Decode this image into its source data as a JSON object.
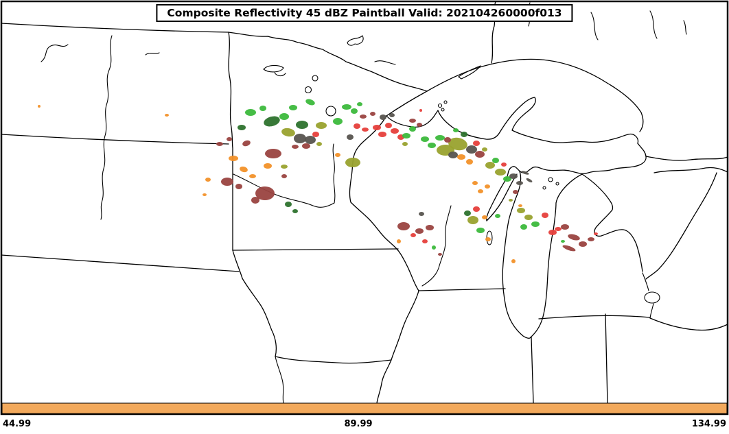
{
  "title": "Composite Reflectivity 45 dBZ Paintball Valid: 202104260000f013",
  "x_axis": {
    "ticks": [
      "44.99",
      "89.99",
      "134.99"
    ]
  },
  "colorbar": {
    "color": "#f2a95c"
  },
  "chart_data": {
    "type": "paintball-scatter-map",
    "title": "Composite Reflectivity 45 dBZ Paintball Valid: 202104260000f013",
    "threshold": "45 dBZ",
    "valid_label": "202104260000f013",
    "x_tick_labels": [
      "44.99",
      "89.99",
      "134.99"
    ],
    "region": "Upper Midwest / Great Lakes",
    "coordinate_space": "canvas pixels 1062x633; blob = [cx, cy, rx, ry, member_index, rotation_deg]",
    "members": [
      {
        "name": "member-1-green",
        "color": "#3cb93c"
      },
      {
        "name": "member-2-dark-green",
        "color": "#2d722d"
      },
      {
        "name": "member-3-olive",
        "color": "#99a22e"
      },
      {
        "name": "member-4-orange",
        "color": "#f29129"
      },
      {
        "name": "member-5-red",
        "color": "#e63f3b"
      },
      {
        "name": "member-6-dark-red",
        "color": "#9a4340"
      },
      {
        "name": "member-7-gray",
        "color": "#57544f"
      }
    ],
    "blobs": [
      [
        57,
        155,
        2,
        2,
        3
      ],
      [
        243,
        168,
        3,
        2,
        3
      ],
      [
        352,
        186,
        6,
        4,
        1
      ],
      [
        365,
        164,
        8,
        5,
        0
      ],
      [
        383,
        158,
        5,
        4,
        0
      ],
      [
        396,
        177,
        12,
        7,
        1,
        -15
      ],
      [
        414,
        170,
        7,
        5,
        0
      ],
      [
        427,
        157,
        6,
        4,
        0
      ],
      [
        452,
        149,
        7,
        4,
        0,
        20
      ],
      [
        468,
        183,
        8,
        5,
        2
      ],
      [
        440,
        182,
        9,
        6,
        1
      ],
      [
        420,
        193,
        10,
        6,
        2,
        10
      ],
      [
        437,
        202,
        9,
        7,
        6
      ],
      [
        452,
        204,
        8,
        6,
        6
      ],
      [
        460,
        196,
        5,
        4,
        4
      ],
      [
        446,
        213,
        6,
        4,
        5
      ],
      [
        430,
        214,
        5,
        3,
        5
      ],
      [
        465,
        210,
        4,
        3,
        2
      ],
      [
        320,
        210,
        5,
        3,
        5
      ],
      [
        334,
        203,
        4,
        3,
        5
      ],
      [
        359,
        209,
        6,
        4,
        5,
        -20
      ],
      [
        398,
        224,
        12,
        7,
        5
      ],
      [
        303,
        262,
        4,
        3,
        3
      ],
      [
        340,
        231,
        7,
        4,
        3
      ],
      [
        355,
        247,
        6,
        4,
        3,
        15
      ],
      [
        368,
        257,
        5,
        3,
        3
      ],
      [
        390,
        242,
        6,
        4,
        3
      ],
      [
        414,
        243,
        5,
        3,
        2
      ],
      [
        331,
        265,
        9,
        6,
        5
      ],
      [
        348,
        272,
        5,
        4,
        5
      ],
      [
        386,
        282,
        14,
        10,
        5
      ],
      [
        372,
        292,
        6,
        5,
        5
      ],
      [
        414,
        257,
        4,
        3,
        5
      ],
      [
        420,
        298,
        5,
        4,
        1
      ],
      [
        430,
        308,
        4,
        3,
        1
      ],
      [
        298,
        284,
        3,
        2,
        3
      ],
      [
        492,
        177,
        7,
        5,
        0
      ],
      [
        505,
        156,
        7,
        4,
        0
      ],
      [
        516,
        162,
        5,
        4,
        0
      ],
      [
        524,
        152,
        4,
        3,
        0
      ],
      [
        520,
        184,
        5,
        4,
        4
      ],
      [
        532,
        189,
        5,
        3,
        4
      ],
      [
        529,
        170,
        5,
        3,
        5
      ],
      [
        543,
        166,
        4,
        3,
        5
      ],
      [
        510,
        200,
        5,
        4,
        6
      ],
      [
        514,
        237,
        11,
        7,
        2
      ],
      [
        492,
        226,
        4,
        3,
        3
      ],
      [
        549,
        186,
        6,
        4,
        4
      ],
      [
        557,
        196,
        6,
        4,
        4
      ],
      [
        566,
        183,
        5,
        4,
        4
      ],
      [
        575,
        191,
        6,
        4,
        4
      ],
      [
        584,
        200,
        5,
        4,
        4
      ],
      [
        558,
        171,
        5,
        4,
        6
      ],
      [
        571,
        168,
        4,
        3,
        6
      ],
      [
        592,
        198,
        6,
        4,
        0
      ],
      [
        601,
        188,
        5,
        4,
        0
      ],
      [
        601,
        176,
        5,
        3,
        5
      ],
      [
        611,
        182,
        4,
        3,
        5
      ],
      [
        613,
        161,
        2,
        2,
        4
      ],
      [
        590,
        210,
        4,
        3,
        2
      ],
      [
        619,
        203,
        6,
        4,
        0
      ],
      [
        629,
        212,
        6,
        4,
        0
      ],
      [
        641,
        201,
        7,
        4,
        0
      ],
      [
        649,
        219,
        13,
        8,
        2
      ],
      [
        667,
        210,
        14,
        9,
        2,
        10
      ],
      [
        660,
        226,
        7,
        5,
        6
      ],
      [
        687,
        218,
        8,
        6,
        6
      ],
      [
        652,
        204,
        5,
        4,
        5
      ],
      [
        699,
        225,
        7,
        5,
        5
      ],
      [
        672,
        229,
        6,
        4,
        3
      ],
      [
        684,
        236,
        5,
        4,
        3
      ],
      [
        694,
        209,
        5,
        4,
        4
      ],
      [
        706,
        218,
        4,
        3,
        2
      ],
      [
        664,
        190,
        4,
        3,
        0
      ],
      [
        676,
        196,
        5,
        4,
        1
      ],
      [
        714,
        241,
        7,
        5,
        2
      ],
      [
        729,
        251,
        8,
        5,
        2
      ],
      [
        722,
        234,
        5,
        4,
        0
      ],
      [
        739,
        261,
        6,
        4,
        0
      ],
      [
        748,
        257,
        6,
        4,
        6
      ],
      [
        757,
        267,
        5,
        3,
        6
      ],
      [
        765,
        252,
        6,
        2,
        6,
        20
      ],
      [
        771,
        263,
        5,
        2,
        6,
        30
      ],
      [
        692,
        267,
        4,
        3,
        3
      ],
      [
        700,
        279,
        4,
        3,
        3
      ],
      [
        710,
        272,
        4,
        3,
        3
      ],
      [
        734,
        240,
        4,
        3,
        4
      ],
      [
        751,
        280,
        4,
        3,
        5
      ],
      [
        588,
        330,
        9,
        6,
        5
      ],
      [
        611,
        337,
        6,
        4,
        5
      ],
      [
        626,
        332,
        6,
        4,
        5
      ],
      [
        602,
        343,
        4,
        3,
        4
      ],
      [
        619,
        352,
        4,
        3,
        4
      ],
      [
        632,
        361,
        3,
        3,
        0
      ],
      [
        614,
        312,
        4,
        3,
        6
      ],
      [
        581,
        352,
        3,
        3,
        3
      ],
      [
        641,
        371,
        3,
        2,
        5
      ],
      [
        694,
        305,
        5,
        4,
        4
      ],
      [
        689,
        321,
        8,
        6,
        2
      ],
      [
        700,
        336,
        6,
        4,
        0
      ],
      [
        711,
        349,
        4,
        3,
        3
      ],
      [
        706,
        317,
        4,
        3,
        3
      ],
      [
        681,
        311,
        5,
        4,
        1
      ],
      [
        725,
        315,
        4,
        3,
        0
      ],
      [
        759,
        307,
        6,
        4,
        2
      ],
      [
        770,
        317,
        6,
        4,
        2
      ],
      [
        780,
        327,
        6,
        4,
        0
      ],
      [
        763,
        331,
        5,
        4,
        0
      ],
      [
        794,
        314,
        5,
        4,
        4
      ],
      [
        805,
        339,
        6,
        4,
        4
      ],
      [
        813,
        334,
        5,
        3,
        4
      ],
      [
        823,
        331,
        6,
        4,
        5
      ],
      [
        836,
        346,
        9,
        4,
        5,
        15
      ],
      [
        849,
        356,
        6,
        4,
        5
      ],
      [
        861,
        349,
        5,
        3,
        5
      ],
      [
        829,
        362,
        10,
        3,
        5,
        20
      ],
      [
        868,
        341,
        3,
        2,
        4
      ],
      [
        820,
        352,
        3,
        2,
        0
      ],
      [
        748,
        381,
        3,
        3,
        3
      ],
      [
        758,
        300,
        3,
        2,
        3
      ],
      [
        744,
        292,
        3,
        2,
        2
      ]
    ]
  }
}
